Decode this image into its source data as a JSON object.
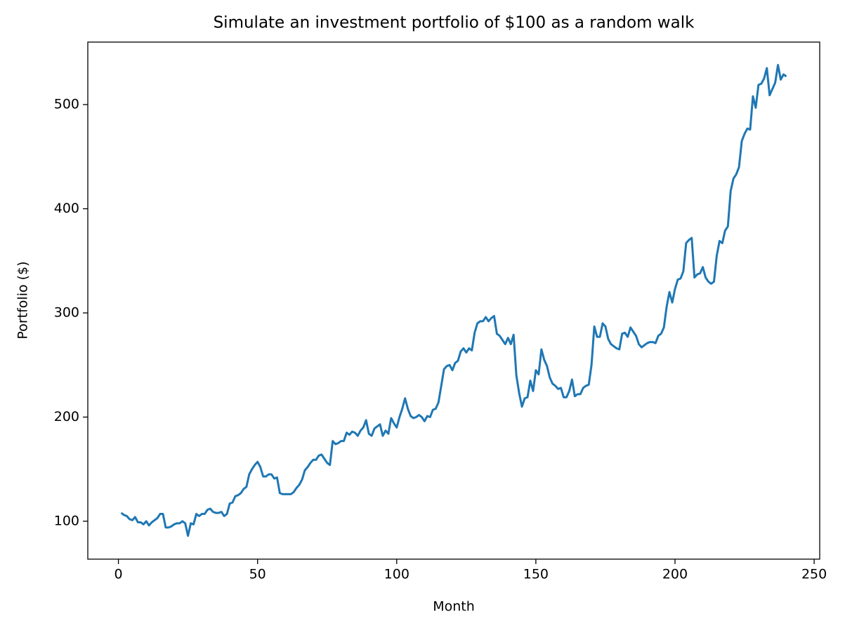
{
  "chart_data": {
    "type": "line",
    "title": "Simulate an investment portfolio of $100 as a random walk",
    "xlabel": "Month",
    "ylabel": "Portfolio ($)",
    "color": "#1f77b4",
    "grid": false,
    "xlim": [
      -11,
      252
    ],
    "ylim": [
      63.6,
      560
    ],
    "xticks": [
      0,
      50,
      100,
      150,
      200,
      250
    ],
    "yticks": [
      100,
      200,
      300,
      400,
      500
    ],
    "x": [
      1,
      2,
      3,
      4,
      5,
      6,
      7,
      8,
      9,
      10,
      11,
      12,
      13,
      14,
      15,
      16,
      17,
      18,
      19,
      20,
      21,
      22,
      23,
      24,
      25,
      26,
      27,
      28,
      29,
      30,
      31,
      32,
      33,
      34,
      35,
      36,
      37,
      38,
      39,
      40,
      41,
      42,
      43,
      44,
      45,
      46,
      47,
      48,
      49,
      50,
      51,
      52,
      53,
      54,
      55,
      56,
      57,
      58,
      59,
      60,
      61,
      62,
      63,
      64,
      65,
      66,
      67,
      68,
      69,
      70,
      71,
      72,
      73,
      74,
      75,
      76,
      77,
      78,
      79,
      80,
      81,
      82,
      83,
      84,
      85,
      86,
      87,
      88,
      89,
      90,
      91,
      92,
      93,
      94,
      95,
      96,
      97,
      98,
      99,
      100,
      101,
      102,
      103,
      104,
      105,
      106,
      107,
      108,
      109,
      110,
      111,
      112,
      113,
      114,
      115,
      116,
      117,
      118,
      119,
      120,
      121,
      122,
      123,
      124,
      125,
      126,
      127,
      128,
      129,
      130,
      131,
      132,
      133,
      134,
      135,
      136,
      137,
      138,
      139,
      140,
      141,
      142,
      143,
      144,
      145,
      146,
      147,
      148,
      149,
      150,
      151,
      152,
      153,
      154,
      155,
      156,
      157,
      158,
      159,
      160,
      161,
      162,
      163,
      164,
      165,
      166,
      167,
      168,
      169,
      170,
      171,
      172,
      173,
      174,
      175,
      176,
      177,
      178,
      179,
      180,
      181,
      182,
      183,
      184,
      185,
      186,
      187,
      188,
      189,
      190,
      191,
      192,
      193,
      194,
      195,
      196,
      197,
      198,
      199,
      200,
      201,
      202,
      203,
      204,
      205,
      206,
      207,
      208,
      209,
      210,
      211,
      212,
      213,
      214,
      215,
      216,
      217,
      218,
      219,
      220,
      221,
      222,
      223,
      224,
      225,
      226,
      227,
      228,
      229,
      230,
      231,
      232,
      233,
      234,
      235,
      236,
      237,
      238,
      239,
      240
    ],
    "values": [
      108,
      106,
      105,
      102,
      101,
      104,
      99,
      99,
      97,
      100,
      96,
      99,
      101,
      103,
      107,
      107,
      94,
      94,
      95,
      97,
      98,
      98,
      100,
      98,
      86,
      98,
      97,
      107,
      105,
      107,
      107,
      111,
      112,
      109,
      108,
      108,
      109,
      105,
      107,
      117,
      118,
      124,
      125,
      127,
      131,
      133,
      145,
      150,
      154,
      157,
      152,
      143,
      143,
      145,
      145,
      141,
      142,
      127,
      126,
      126,
      126,
      126,
      128,
      132,
      135,
      140,
      149,
      152,
      156,
      159,
      159,
      163,
      164,
      160,
      156,
      154,
      177,
      174,
      175,
      177,
      177,
      185,
      183,
      186,
      185,
      182,
      187,
      190,
      197,
      184,
      182,
      189,
      191,
      193,
      182,
      187,
      184,
      199,
      194,
      190,
      200,
      208,
      218,
      208,
      201,
      199,
      200,
      202,
      200,
      196,
      201,
      200,
      207,
      208,
      214,
      230,
      246,
      249,
      250,
      245,
      252,
      254,
      263,
      266,
      262,
      266,
      264,
      281,
      290,
      292,
      292,
      296,
      292,
      295,
      297,
      280,
      278,
      274,
      270,
      276,
      270,
      279,
      240,
      223,
      210,
      218,
      219,
      235,
      225,
      245,
      241,
      265,
      255,
      249,
      238,
      232,
      230,
      227,
      228,
      219,
      219,
      225,
      236,
      220,
      222,
      222,
      228,
      230,
      231,
      250,
      287,
      277,
      277,
      290,
      287,
      275,
      270,
      268,
      266,
      265,
      280,
      281,
      277,
      286,
      282,
      278,
      270,
      267,
      269,
      271,
      272,
      272,
      271,
      278,
      280,
      286,
      306,
      320,
      310,
      323,
      332,
      333,
      340,
      367,
      370,
      372,
      334,
      337,
      338,
      344,
      334,
      330,
      328,
      330,
      355,
      369,
      367,
      379,
      383,
      417,
      429,
      433,
      440,
      465,
      472,
      477,
      476,
      508,
      497,
      519,
      520,
      525,
      535,
      509,
      515,
      521,
      538,
      524,
      529,
      527
    ]
  }
}
